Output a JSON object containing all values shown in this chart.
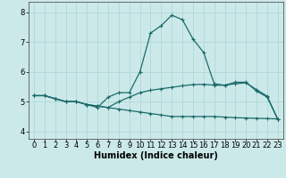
{
  "xlabel": "Humidex (Indice chaleur)",
  "ylabel": "",
  "xlim": [
    -0.5,
    23.5
  ],
  "ylim": [
    3.75,
    8.35
  ],
  "yticks": [
    4,
    5,
    6,
    7,
    8
  ],
  "xticks": [
    0,
    1,
    2,
    3,
    4,
    5,
    6,
    7,
    8,
    9,
    10,
    11,
    12,
    13,
    14,
    15,
    16,
    17,
    18,
    19,
    20,
    21,
    22,
    23
  ],
  "background_color": "#cce9e9",
  "grid_color": "#aad4d4",
  "line_color": "#1a6b6b",
  "line1_x": [
    0,
    1,
    2,
    3,
    4,
    5,
    6,
    7,
    8,
    9,
    10,
    11,
    12,
    13,
    14,
    15,
    16,
    17,
    18,
    19,
    20,
    21,
    22,
    23
  ],
  "line1_y": [
    5.2,
    5.2,
    5.1,
    5.0,
    5.0,
    4.9,
    4.8,
    5.15,
    5.3,
    5.3,
    6.0,
    7.3,
    7.55,
    7.9,
    7.75,
    7.1,
    6.65,
    5.6,
    5.55,
    5.65,
    5.65,
    5.35,
    5.15,
    4.4
  ],
  "line2_x": [
    0,
    1,
    2,
    3,
    4,
    5,
    6,
    7,
    8,
    9,
    10,
    11,
    12,
    13,
    14,
    15,
    16,
    17,
    18,
    19,
    20,
    21,
    22,
    23
  ],
  "line2_y": [
    5.2,
    5.2,
    5.1,
    5.0,
    5.0,
    4.9,
    4.85,
    4.8,
    5.0,
    5.15,
    5.3,
    5.38,
    5.43,
    5.48,
    5.53,
    5.57,
    5.58,
    5.55,
    5.55,
    5.6,
    5.63,
    5.4,
    5.18,
    4.4
  ],
  "line3_x": [
    0,
    1,
    2,
    3,
    4,
    5,
    6,
    7,
    8,
    9,
    10,
    11,
    12,
    13,
    14,
    15,
    16,
    17,
    18,
    19,
    20,
    21,
    22,
    23
  ],
  "line3_y": [
    5.2,
    5.2,
    5.1,
    5.0,
    5.0,
    4.9,
    4.85,
    4.8,
    4.75,
    4.7,
    4.65,
    4.6,
    4.55,
    4.5,
    4.5,
    4.5,
    4.5,
    4.5,
    4.48,
    4.46,
    4.45,
    4.44,
    4.43,
    4.42
  ],
  "font_size_label": 7,
  "font_size_tick": 6,
  "marker": "+",
  "marker_size": 3.5,
  "linewidth": 0.9
}
